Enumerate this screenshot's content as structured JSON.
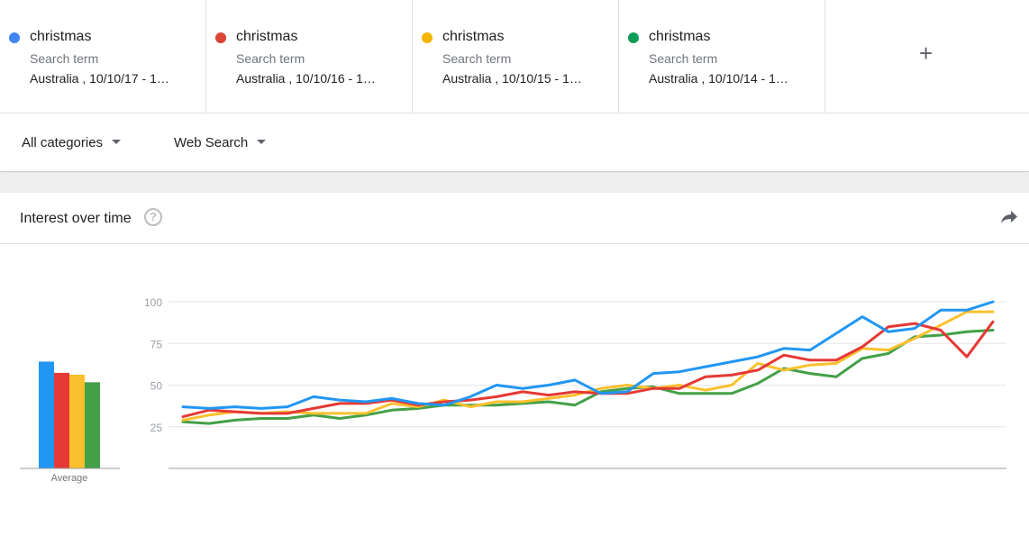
{
  "terms": [
    {
      "name": "christmas",
      "type": "Search term",
      "location": "Australia , 10/10/17 - 1…",
      "color": "#4285f4"
    },
    {
      "name": "christmas",
      "type": "Search term",
      "location": "Australia , 10/10/16 - 1…",
      "color": "#db4437"
    },
    {
      "name": "christmas",
      "type": "Search term",
      "location": "Australia , 10/10/15 - 1…",
      "color": "#f4b400"
    },
    {
      "name": "christmas",
      "type": "Search term",
      "location": "Australia , 10/10/14 - 1…",
      "color": "#0f9d58"
    }
  ],
  "add_icon": "+",
  "filters": {
    "category": "All categories",
    "search_type": "Web Search"
  },
  "card": {
    "title": "Interest over time",
    "help_icon": "?"
  },
  "chart_data": {
    "type": "line",
    "yticks": [
      25,
      50,
      75,
      100
    ],
    "ylim": [
      0,
      100
    ],
    "average_label": "Average",
    "averages": [
      57,
      51,
      50,
      46
    ],
    "series": [
      {
        "color": "#2196f3",
        "values": [
          37,
          36,
          37,
          36,
          37,
          43,
          41,
          40,
          42,
          39,
          38,
          43,
          50,
          48,
          50,
          53,
          45,
          46,
          57,
          58,
          61,
          64,
          67,
          72,
          71,
          81,
          91,
          82,
          84,
          95,
          95,
          100
        ]
      },
      {
        "color": "#e53935",
        "values": [
          31,
          35,
          34,
          33,
          33,
          36,
          39,
          39,
          41,
          38,
          40,
          41,
          43,
          46,
          44,
          46,
          45,
          45,
          48,
          48,
          55,
          56,
          59,
          68,
          65,
          65,
          73,
          85,
          87,
          83,
          67,
          88
        ]
      },
      {
        "color": "#fbc02d",
        "values": [
          29,
          32,
          34,
          33,
          34,
          33,
          33,
          33,
          39,
          37,
          41,
          37,
          40,
          40,
          42,
          44,
          48,
          50,
          48,
          50,
          47,
          50,
          63,
          59,
          62,
          63,
          72,
          71,
          78,
          86,
          94,
          94
        ]
      },
      {
        "color": "#43a047",
        "values": [
          28,
          27,
          29,
          30,
          30,
          32,
          30,
          32,
          35,
          36,
          38,
          38,
          38,
          39,
          40,
          38,
          46,
          48,
          49,
          45,
          45,
          45,
          51,
          60,
          57,
          55,
          66,
          69,
          79,
          80,
          82,
          83
        ]
      }
    ]
  }
}
